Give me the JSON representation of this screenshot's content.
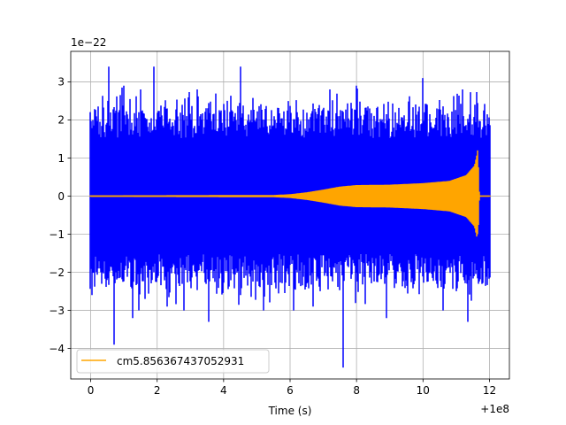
{
  "chart_data": {
    "type": "line",
    "title": "",
    "xlabel": "Time (s)",
    "ylabel": "",
    "x_offset_label": "+1e8",
    "y_scale_label": "1e−22",
    "xlim": [
      -0.6,
      12.6
    ],
    "ylim": [
      -4.8,
      3.8
    ],
    "x_ticks": [
      0,
      2,
      4,
      6,
      8,
      10,
      12
    ],
    "x_tick_labels": [
      "0",
      "2",
      "4",
      "6",
      "8",
      "10",
      "12"
    ],
    "y_ticks": [
      3,
      2,
      1,
      0,
      -1,
      -2,
      -3,
      -4
    ],
    "y_tick_labels": [
      "3",
      "2",
      "1",
      "0",
      "−1",
      "−2",
      "−3",
      "−4"
    ],
    "grid": true,
    "legend_position": "lower-left",
    "series": [
      {
        "name": "",
        "color": "#0000ff",
        "kind": "noise",
        "x_range": [
          0,
          12
        ],
        "envelope_typical": [
          [
            0,
            1.6
          ],
          [
            12,
            1.6
          ]
        ],
        "spikes": [
          {
            "x": 0.05,
            "y": -2.6
          },
          {
            "x": 0.55,
            "y": 3.4
          },
          {
            "x": 0.7,
            "y": -3.9
          },
          {
            "x": 1.0,
            "y": 2.9
          },
          {
            "x": 1.25,
            "y": -3.2
          },
          {
            "x": 1.5,
            "y": 2.8
          },
          {
            "x": 1.9,
            "y": 3.4
          },
          {
            "x": 2.3,
            "y": -2.9
          },
          {
            "x": 2.8,
            "y": -3.0
          },
          {
            "x": 3.2,
            "y": 2.8
          },
          {
            "x": 3.55,
            "y": -3.3
          },
          {
            "x": 4.5,
            "y": 3.4
          },
          {
            "x": 5.2,
            "y": -3.0
          },
          {
            "x": 6.1,
            "y": -3.0
          },
          {
            "x": 6.7,
            "y": -2.9
          },
          {
            "x": 7.2,
            "y": 2.8
          },
          {
            "x": 7.6,
            "y": -4.5
          },
          {
            "x": 8.0,
            "y": 2.9
          },
          {
            "x": 8.9,
            "y": -3.2
          },
          {
            "x": 10.0,
            "y": 3.1
          },
          {
            "x": 10.6,
            "y": -3.0
          },
          {
            "x": 11.2,
            "y": 2.8
          },
          {
            "x": 11.35,
            "y": -3.3
          },
          {
            "x": 11.55,
            "y": 2.4
          }
        ]
      },
      {
        "name": "cm5.856367437052931",
        "color": "#ffa500",
        "kind": "chirp",
        "x_range": [
          0,
          12
        ],
        "envelope": [
          [
            0,
            0.02
          ],
          [
            5.5,
            0.03
          ],
          [
            6.0,
            0.05
          ],
          [
            6.5,
            0.1
          ],
          [
            7.0,
            0.17
          ],
          [
            7.5,
            0.25
          ],
          [
            8.0,
            0.29
          ],
          [
            9.0,
            0.3
          ],
          [
            10.0,
            0.34
          ],
          [
            10.8,
            0.4
          ],
          [
            11.3,
            0.55
          ],
          [
            11.55,
            0.8
          ],
          [
            11.65,
            1.2
          ],
          [
            11.7,
            0.0
          ],
          [
            12,
            0.0
          ]
        ],
        "peak_max": 1.2,
        "peak_min": -1.0,
        "peak_x": 11.65
      }
    ]
  }
}
